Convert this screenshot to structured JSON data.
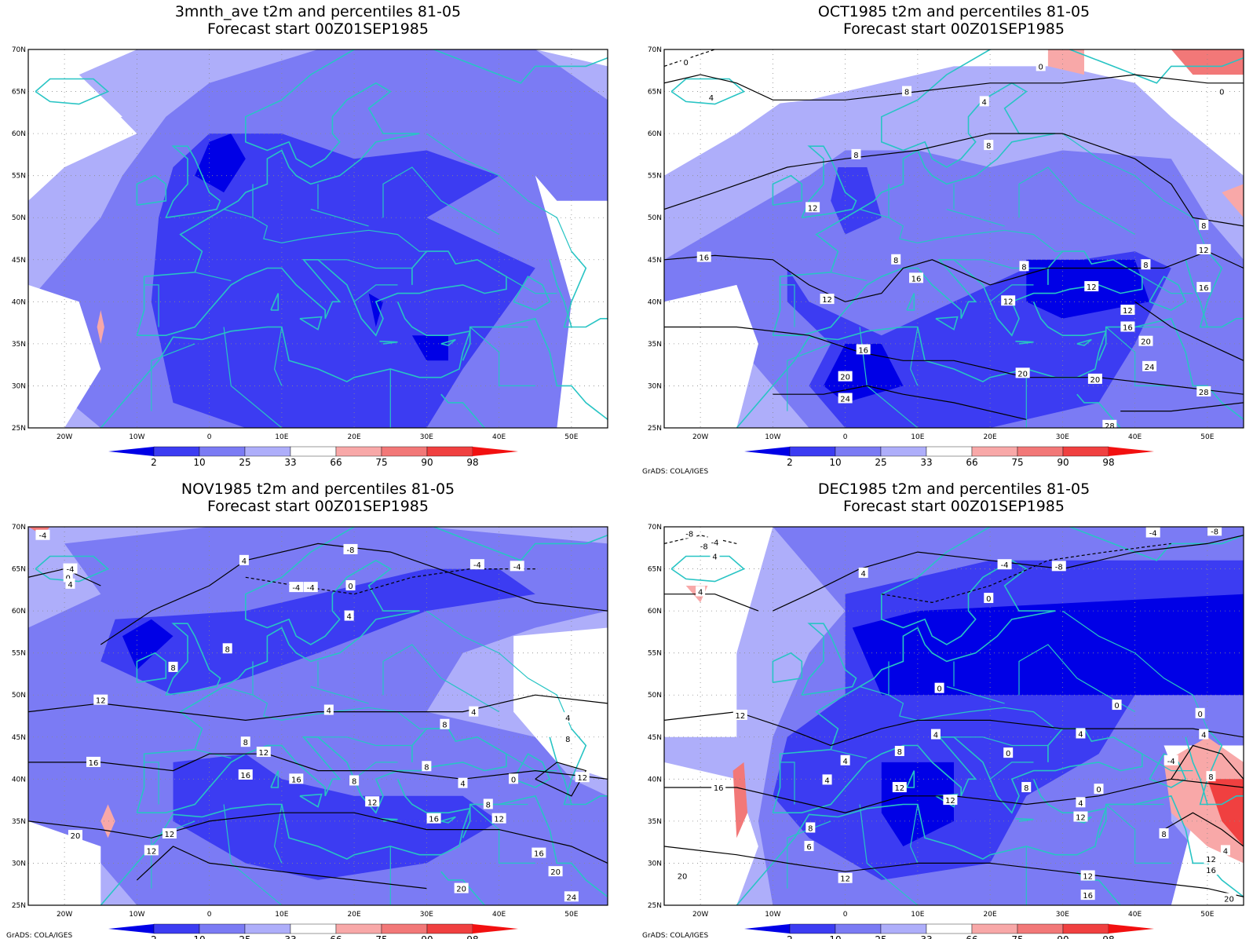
{
  "colorbar": {
    "labels": [
      "2",
      "10",
      "25",
      "33",
      "66",
      "75",
      "90",
      "98"
    ],
    "below_colors": [
      "#0000e6",
      "#3c3cf2",
      "#7b7bf4",
      "#aeaefa"
    ],
    "above_colors": [
      "#f8a8a8",
      "#f27878",
      "#f04040",
      "#f21010"
    ],
    "blank_color": "#ffffff"
  },
  "credit": "GrADS: COLA/IGES",
  "panels": [
    {
      "title_line1": "3mnth_ave t2m and percentiles 81-05",
      "title_line2": "Forecast start 00Z01SEP1985",
      "lat_labels": [
        "70N",
        "65N",
        "60N",
        "55N",
        "50N",
        "45N",
        "40N",
        "35N",
        "30N",
        "25N"
      ],
      "lon_labels": [
        "20W",
        "10W",
        "0",
        "10E",
        "20E",
        "30E",
        "40E",
        "50E"
      ],
      "show_credit": false,
      "contour_labels": []
    },
    {
      "title_line1": "OCT1985 t2m and percentiles 81-05",
      "title_line2": "Forecast start 00Z01SEP1985",
      "lat_labels": [
        "70N",
        "65N",
        "60N",
        "55N",
        "50N",
        "45N",
        "40N",
        "35N",
        "30N",
        "25N"
      ],
      "lon_labels": [
        "20W",
        "10W",
        "0",
        "10E",
        "20E",
        "30E",
        "40E",
        "50E"
      ],
      "show_credit": true,
      "contour_labels": [
        {
          "text": "0",
          "lon": -22,
          "lat": 68.5
        },
        {
          "text": "4",
          "lon": -18.5,
          "lat": 64.3
        },
        {
          "text": "8",
          "lon": 1.5,
          "lat": 57.5
        },
        {
          "text": "12",
          "lon": -4.5,
          "lat": 51.2
        },
        {
          "text": "16",
          "lon": -19.5,
          "lat": 45.3
        },
        {
          "text": "12",
          "lon": -2.5,
          "lat": 40.3
        },
        {
          "text": "8",
          "lon": 7,
          "lat": 45
        },
        {
          "text": "16",
          "lon": 9.8,
          "lat": 42.8
        },
        {
          "text": "8",
          "lon": 24.7,
          "lat": 44.2
        },
        {
          "text": "12",
          "lon": 34,
          "lat": 41.8
        },
        {
          "text": "12",
          "lon": 22.5,
          "lat": 40.1
        },
        {
          "text": "12",
          "lon": 39,
          "lat": 39
        },
        {
          "text": "16",
          "lon": 39,
          "lat": 37
        },
        {
          "text": "20",
          "lon": 41.5,
          "lat": 35.3
        },
        {
          "text": "8",
          "lon": 41.5,
          "lat": 44.4
        },
        {
          "text": "16",
          "lon": 49.5,
          "lat": 41.7
        },
        {
          "text": "12",
          "lon": 49.5,
          "lat": 46.2
        },
        {
          "text": "24",
          "lon": 42,
          "lat": 32.3
        },
        {
          "text": "28",
          "lon": 49.5,
          "lat": 29.3
        },
        {
          "text": "20",
          "lon": 24.5,
          "lat": 31.5
        },
        {
          "text": "20",
          "lon": 34.5,
          "lat": 30.8
        },
        {
          "text": "16",
          "lon": 2.5,
          "lat": 34.3
        },
        {
          "text": "20",
          "lon": 0,
          "lat": 31.1
        },
        {
          "text": "24",
          "lon": 0,
          "lat": 28.5
        },
        {
          "text": "28",
          "lon": 36.5,
          "lat": 25.3
        },
        {
          "text": "8",
          "lon": 19.8,
          "lat": 58.6
        },
        {
          "text": "4",
          "lon": 19.2,
          "lat": 63.8
        },
        {
          "text": "0",
          "lon": 27,
          "lat": 68
        },
        {
          "text": "8",
          "lon": 8.5,
          "lat": 65
        },
        {
          "text": "0",
          "lon": 52,
          "lat": 65
        },
        {
          "text": "8",
          "lon": 49.5,
          "lat": 49.1
        }
      ]
    },
    {
      "title_line1": "NOV1985 t2m and percentiles 81-05",
      "title_line2": "Forecast start 00Z01SEP1985",
      "lat_labels": [
        "70N",
        "65N",
        "60N",
        "55N",
        "50N",
        "45N",
        "40N",
        "35N",
        "30N",
        "25N"
      ],
      "lon_labels": [
        "20W",
        "10W",
        "0",
        "10E",
        "20E",
        "30E",
        "40E",
        "50E"
      ],
      "show_credit": true,
      "contour_labels": [
        {
          "text": "-4",
          "lon": -23,
          "lat": 69
        },
        {
          "text": "-4",
          "lon": -19.2,
          "lat": 65
        },
        {
          "text": "0",
          "lon": -19.5,
          "lat": 64
        },
        {
          "text": "4",
          "lon": -19.2,
          "lat": 63.2
        },
        {
          "text": "4",
          "lon": 4.8,
          "lat": 66
        },
        {
          "text": "-8",
          "lon": 19.5,
          "lat": 67.3
        },
        {
          "text": "-4",
          "lon": 12,
          "lat": 62.8
        },
        {
          "text": "-4",
          "lon": 14,
          "lat": 62.8
        },
        {
          "text": "0",
          "lon": 19.5,
          "lat": 63
        },
        {
          "text": "-4",
          "lon": 37,
          "lat": 65.5
        },
        {
          "text": "-4",
          "lon": 42.5,
          "lat": 65.3
        },
        {
          "text": "4",
          "lon": 19.3,
          "lat": 59.4
        },
        {
          "text": "8",
          "lon": 2.5,
          "lat": 55.5
        },
        {
          "text": "8",
          "lon": -5,
          "lat": 53.3
        },
        {
          "text": "12",
          "lon": -15,
          "lat": 49.4
        },
        {
          "text": "4",
          "lon": 16.5,
          "lat": 48.2
        },
        {
          "text": "4",
          "lon": 36.5,
          "lat": 48
        },
        {
          "text": "8",
          "lon": 32.5,
          "lat": 46.5
        },
        {
          "text": "4",
          "lon": 49.5,
          "lat": 47.3
        },
        {
          "text": "8",
          "lon": 49.5,
          "lat": 44.8
        },
        {
          "text": "8",
          "lon": 5,
          "lat": 44.4
        },
        {
          "text": "12",
          "lon": 7.5,
          "lat": 43.2
        },
        {
          "text": "16",
          "lon": -16,
          "lat": 42
        },
        {
          "text": "16",
          "lon": 5,
          "lat": 40.5
        },
        {
          "text": "16",
          "lon": 12,
          "lat": 40
        },
        {
          "text": "8",
          "lon": 30,
          "lat": 41.5
        },
        {
          "text": "4",
          "lon": 35,
          "lat": 39.5
        },
        {
          "text": "0",
          "lon": 42,
          "lat": 40
        },
        {
          "text": "12",
          "lon": 51.5,
          "lat": 40.2
        },
        {
          "text": "8",
          "lon": 20,
          "lat": 39.8
        },
        {
          "text": "12",
          "lon": 22.5,
          "lat": 37.3
        },
        {
          "text": "8",
          "lon": 38.5,
          "lat": 37
        },
        {
          "text": "16",
          "lon": 31,
          "lat": 35.3
        },
        {
          "text": "12",
          "lon": 40,
          "lat": 35.3
        },
        {
          "text": "12",
          "lon": -5.5,
          "lat": 33.5
        },
        {
          "text": "12",
          "lon": -8,
          "lat": 31.5
        },
        {
          "text": "20",
          "lon": -18.5,
          "lat": 33.3
        },
        {
          "text": "16",
          "lon": 45.5,
          "lat": 31.2
        },
        {
          "text": "20",
          "lon": 47.8,
          "lat": 29
        },
        {
          "text": "20",
          "lon": 34.8,
          "lat": 27
        },
        {
          "text": "24",
          "lon": 50,
          "lat": 26
        }
      ]
    },
    {
      "title_line1": "DEC1985 t2m and percentiles 81-05",
      "title_line2": "Forecast start 00Z01SEP1985",
      "lat_labels": [
        "70N",
        "65N",
        "60N",
        "55N",
        "50N",
        "45N",
        "40N",
        "35N",
        "30N",
        "25N"
      ],
      "lon_labels": [
        "20W",
        "10W",
        "0",
        "10E",
        "20E",
        "30E",
        "40E",
        "50E"
      ],
      "show_credit": true,
      "contour_labels": [
        {
          "text": "-8",
          "lon": -21.5,
          "lat": 69.2
        },
        {
          "text": "-4",
          "lon": -18,
          "lat": 68.2
        },
        {
          "text": "-8",
          "lon": -19.5,
          "lat": 67.7
        },
        {
          "text": "4",
          "lon": -18,
          "lat": 66.5
        },
        {
          "text": "4",
          "lon": -20,
          "lat": 62.3
        },
        {
          "text": "4",
          "lon": 2.5,
          "lat": 64.5
        },
        {
          "text": "-4",
          "lon": 22,
          "lat": 65.5
        },
        {
          "text": "-8",
          "lon": 29.5,
          "lat": 65.3
        },
        {
          "text": "-4",
          "lon": 42.5,
          "lat": 69.3
        },
        {
          "text": "-8",
          "lon": 51,
          "lat": 69.5
        },
        {
          "text": "0",
          "lon": 19.8,
          "lat": 61.5
        },
        {
          "text": "0",
          "lon": 13,
          "lat": 50.8
        },
        {
          "text": "0",
          "lon": 37.5,
          "lat": 48.8
        },
        {
          "text": "0",
          "lon": 49,
          "lat": 47.8
        },
        {
          "text": "4",
          "lon": 49.5,
          "lat": 45.3
        },
        {
          "text": "12",
          "lon": -14.5,
          "lat": 47.6
        },
        {
          "text": "4",
          "lon": 0,
          "lat": 42.2
        },
        {
          "text": "4",
          "lon": -2.5,
          "lat": 39.9
        },
        {
          "text": "8",
          "lon": 7.5,
          "lat": 43.3
        },
        {
          "text": "4",
          "lon": 12.5,
          "lat": 45.3
        },
        {
          "text": "0",
          "lon": 22.5,
          "lat": 43.1
        },
        {
          "text": "4",
          "lon": 32.5,
          "lat": 45.4
        },
        {
          "text": "-4",
          "lon": 45,
          "lat": 42.2
        },
        {
          "text": "8",
          "lon": 50.5,
          "lat": 40.3
        },
        {
          "text": "16",
          "lon": -17.5,
          "lat": 39
        },
        {
          "text": "12",
          "lon": 7.5,
          "lat": 39
        },
        {
          "text": "8",
          "lon": 25,
          "lat": 39
        },
        {
          "text": "0",
          "lon": 35,
          "lat": 38.8
        },
        {
          "text": "12",
          "lon": 14.5,
          "lat": 37.5
        },
        {
          "text": "4",
          "lon": 32.5,
          "lat": 37.2
        },
        {
          "text": "12",
          "lon": 32.5,
          "lat": 35.5
        },
        {
          "text": "8",
          "lon": -4.8,
          "lat": 34.2
        },
        {
          "text": "8",
          "lon": 44,
          "lat": 33.5
        },
        {
          "text": "6",
          "lon": -5,
          "lat": 32
        },
        {
          "text": "4",
          "lon": 52.5,
          "lat": 31.5
        },
        {
          "text": "12",
          "lon": 50.5,
          "lat": 30.5
        },
        {
          "text": "16",
          "lon": 50.5,
          "lat": 29.2
        },
        {
          "text": "12",
          "lon": 0,
          "lat": 28.2
        },
        {
          "text": "12",
          "lon": 33.5,
          "lat": 28.5
        },
        {
          "text": "16",
          "lon": 33.5,
          "lat": 26.2
        },
        {
          "text": "20",
          "lon": -22.5,
          "lat": 28.5
        },
        {
          "text": "20",
          "lon": 53,
          "lat": 25.8
        }
      ]
    }
  ]
}
